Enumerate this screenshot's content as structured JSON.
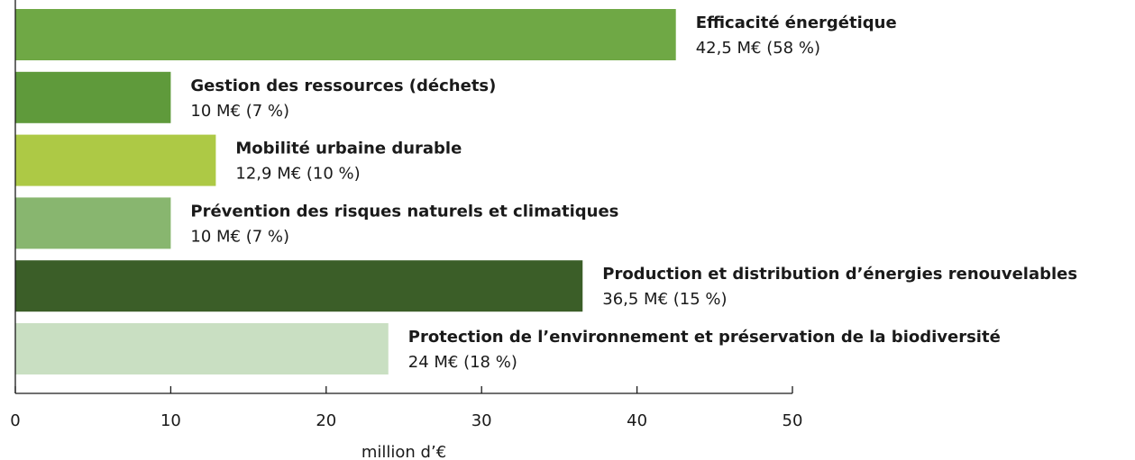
{
  "chart_data": {
    "type": "bar",
    "orientation": "horizontal",
    "categories": [
      "Efficacité énergétique",
      "Gestion des ressources (déchets)",
      "Mobilité urbaine durable",
      "Prévention des risques naturels et climatiques",
      "Production et distribution d’énergies renouvelables",
      "Protection de l’environnement et préservation de la biodiversité"
    ],
    "values": [
      42.5,
      10,
      12.9,
      10,
      36.5,
      24
    ],
    "value_labels": [
      "42,5 M€ (58 %)",
      "10 M€ (7 %)",
      "12,9 M€ (10 %)",
      "10 M€ (7 %)",
      "36,5 M€ (15 %)",
      "24 M€ (18 %)"
    ],
    "colors": [
      "#6fa845",
      "#5f9a3b",
      "#adc945",
      "#88b66f",
      "#3b5e28",
      "#c9dfc2"
    ],
    "xlabel": "million d’€",
    "xlim": [
      0,
      50
    ],
    "xticks": [
      0,
      10,
      20,
      30,
      40,
      50
    ]
  }
}
